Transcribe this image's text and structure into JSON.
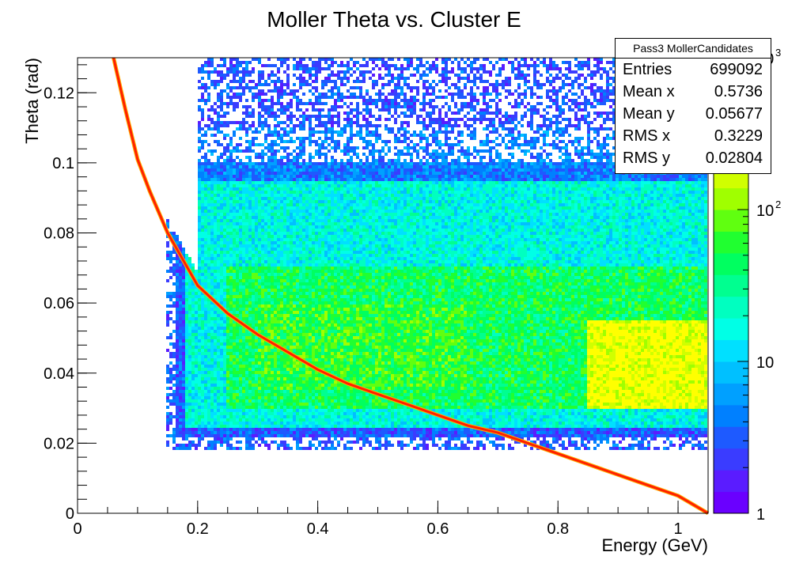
{
  "chart_data": {
    "type": "heatmap",
    "title": "Moller Theta vs. Cluster E",
    "xlabel": "Energy (GeV)",
    "ylabel": "Theta (rad)",
    "xlim": [
      0,
      1.05
    ],
    "ylim": [
      0,
      0.13
    ],
    "x_ticks": [
      "0",
      "0.2",
      "0.4",
      "0.6",
      "0.8",
      "1"
    ],
    "x_tick_values": [
      0,
      0.2,
      0.4,
      0.6,
      0.8,
      1.0
    ],
    "y_ticks": [
      "0",
      "0.02",
      "0.04",
      "0.06",
      "0.08",
      "0.1",
      "0.12"
    ],
    "y_tick_values": [
      0,
      0.02,
      0.04,
      0.06,
      0.08,
      0.1,
      0.12
    ],
    "z_scale": "log",
    "zlim": [
      1,
      1000
    ],
    "colorbar_labels": [
      "1",
      "10",
      "10",
      "10"
    ],
    "colorbar_exponents": [
      "",
      "",
      "2",
      "3"
    ],
    "colorbar_values": [
      1,
      10,
      100,
      1000
    ],
    "palette": [
      "#6a00ff",
      "#5a1cff",
      "#3a3cff",
      "#1e5aff",
      "#0080ff",
      "#00a0ff",
      "#00c0ff",
      "#00e0ff",
      "#00ffe6",
      "#00ffc0",
      "#00ff90",
      "#00ff60",
      "#20ff30",
      "#60ff10",
      "#a0ff00",
      "#d0ff00",
      "#ffff00",
      "#ffd000",
      "#ff9000",
      "#ff4000",
      "#ff0000"
    ],
    "kinematic_curve": {
      "name": "Moller kinematic curve",
      "color": "#ff2000",
      "x": [
        0.06,
        0.08,
        0.1,
        0.12,
        0.15,
        0.18,
        0.2,
        0.25,
        0.3,
        0.35,
        0.4,
        0.45,
        0.5,
        0.55,
        0.6,
        0.65,
        0.7,
        0.75,
        0.8,
        0.85,
        0.9,
        0.95,
        1.0,
        1.02,
        1.04,
        1.05
      ],
      "y": [
        0.13,
        0.115,
        0.101,
        0.092,
        0.08,
        0.071,
        0.065,
        0.057,
        0.051,
        0.046,
        0.041,
        0.037,
        0.034,
        0.031,
        0.028,
        0.025,
        0.023,
        0.02,
        0.017,
        0.014,
        0.011,
        0.008,
        0.005,
        0.003,
        0.001,
        0.0
      ]
    },
    "density_regions": [
      {
        "x": [
          0.15,
          1.05
        ],
        "y": [
          0.018,
          0.13
        ],
        "level": 3
      },
      {
        "x": [
          0.18,
          1.05
        ],
        "y": [
          0.024,
          0.11
        ],
        "level": 8
      },
      {
        "x": [
          0.25,
          1.05
        ],
        "y": [
          0.03,
          0.07
        ],
        "level": 11
      },
      {
        "x": [
          0.3,
          0.65
        ],
        "y": [
          0.035,
          0.06
        ],
        "level": 12
      },
      {
        "x": [
          0.85,
          1.05
        ],
        "y": [
          0.03,
          0.055
        ],
        "level": 16
      }
    ]
  },
  "stats": {
    "name": "Pass3 MollerCandidates",
    "rows": [
      {
        "label": "Entries",
        "value": "699092"
      },
      {
        "label": "Mean x",
        "value": "0.5736"
      },
      {
        "label": "Mean y",
        "value": "0.05677"
      },
      {
        "label": "RMS x",
        "value": "0.3229"
      },
      {
        "label": "RMS y",
        "value": "0.02804"
      }
    ]
  }
}
